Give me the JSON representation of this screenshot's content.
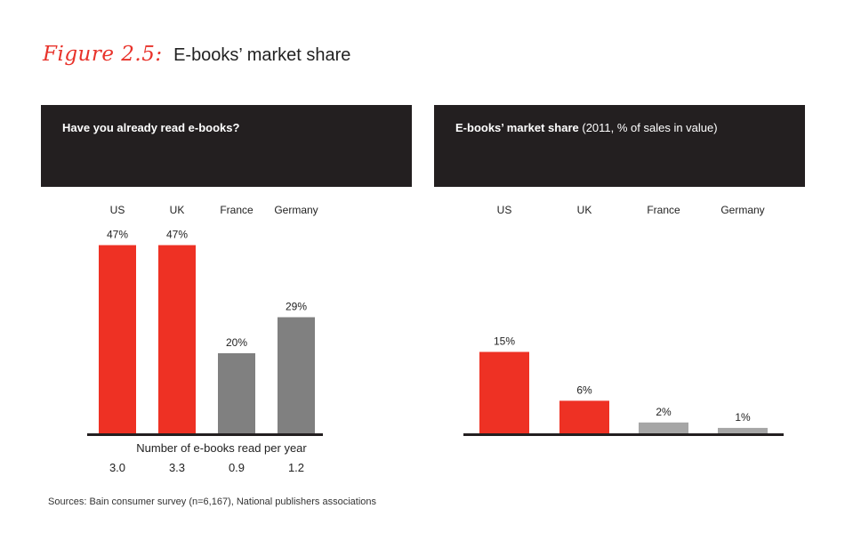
{
  "figure": {
    "label": "Figure 2.5:",
    "title": "E-books’ market share"
  },
  "source": "Sources: Bain consumer survey (n=6,167), National publishers associations",
  "chart_data": [
    {
      "type": "bar",
      "title": "Have you already read e-books?",
      "subtitle": "",
      "categories": [
        "US",
        "UK",
        "France",
        "Germany"
      ],
      "values": [
        47,
        47,
        20,
        29
      ],
      "value_labels": [
        "47%",
        "47%",
        "20%",
        "29%"
      ],
      "colors": [
        "#ee3124",
        "#ee3124",
        "#808080",
        "#808080"
      ],
      "ylim": [
        0,
        50
      ],
      "grid": false,
      "legend": "none",
      "secondary_row": {
        "label": "Number of e-books read per year",
        "values": [
          "3.0",
          "3.3",
          "0.9",
          "1.2"
        ]
      }
    },
    {
      "type": "bar",
      "title": "E-books’ market share",
      "subtitle": "(2011, % of sales in value)",
      "categories": [
        "US",
        "UK",
        "France",
        "Germany"
      ],
      "values": [
        15,
        6,
        2,
        1
      ],
      "value_labels": [
        "15%",
        "6%",
        "2%",
        "1%"
      ],
      "colors": [
        "#ee3124",
        "#ee3124",
        "#a6a6a6",
        "#a6a6a6"
      ],
      "ylim": [
        0,
        50
      ],
      "grid": false,
      "legend": "none"
    }
  ]
}
